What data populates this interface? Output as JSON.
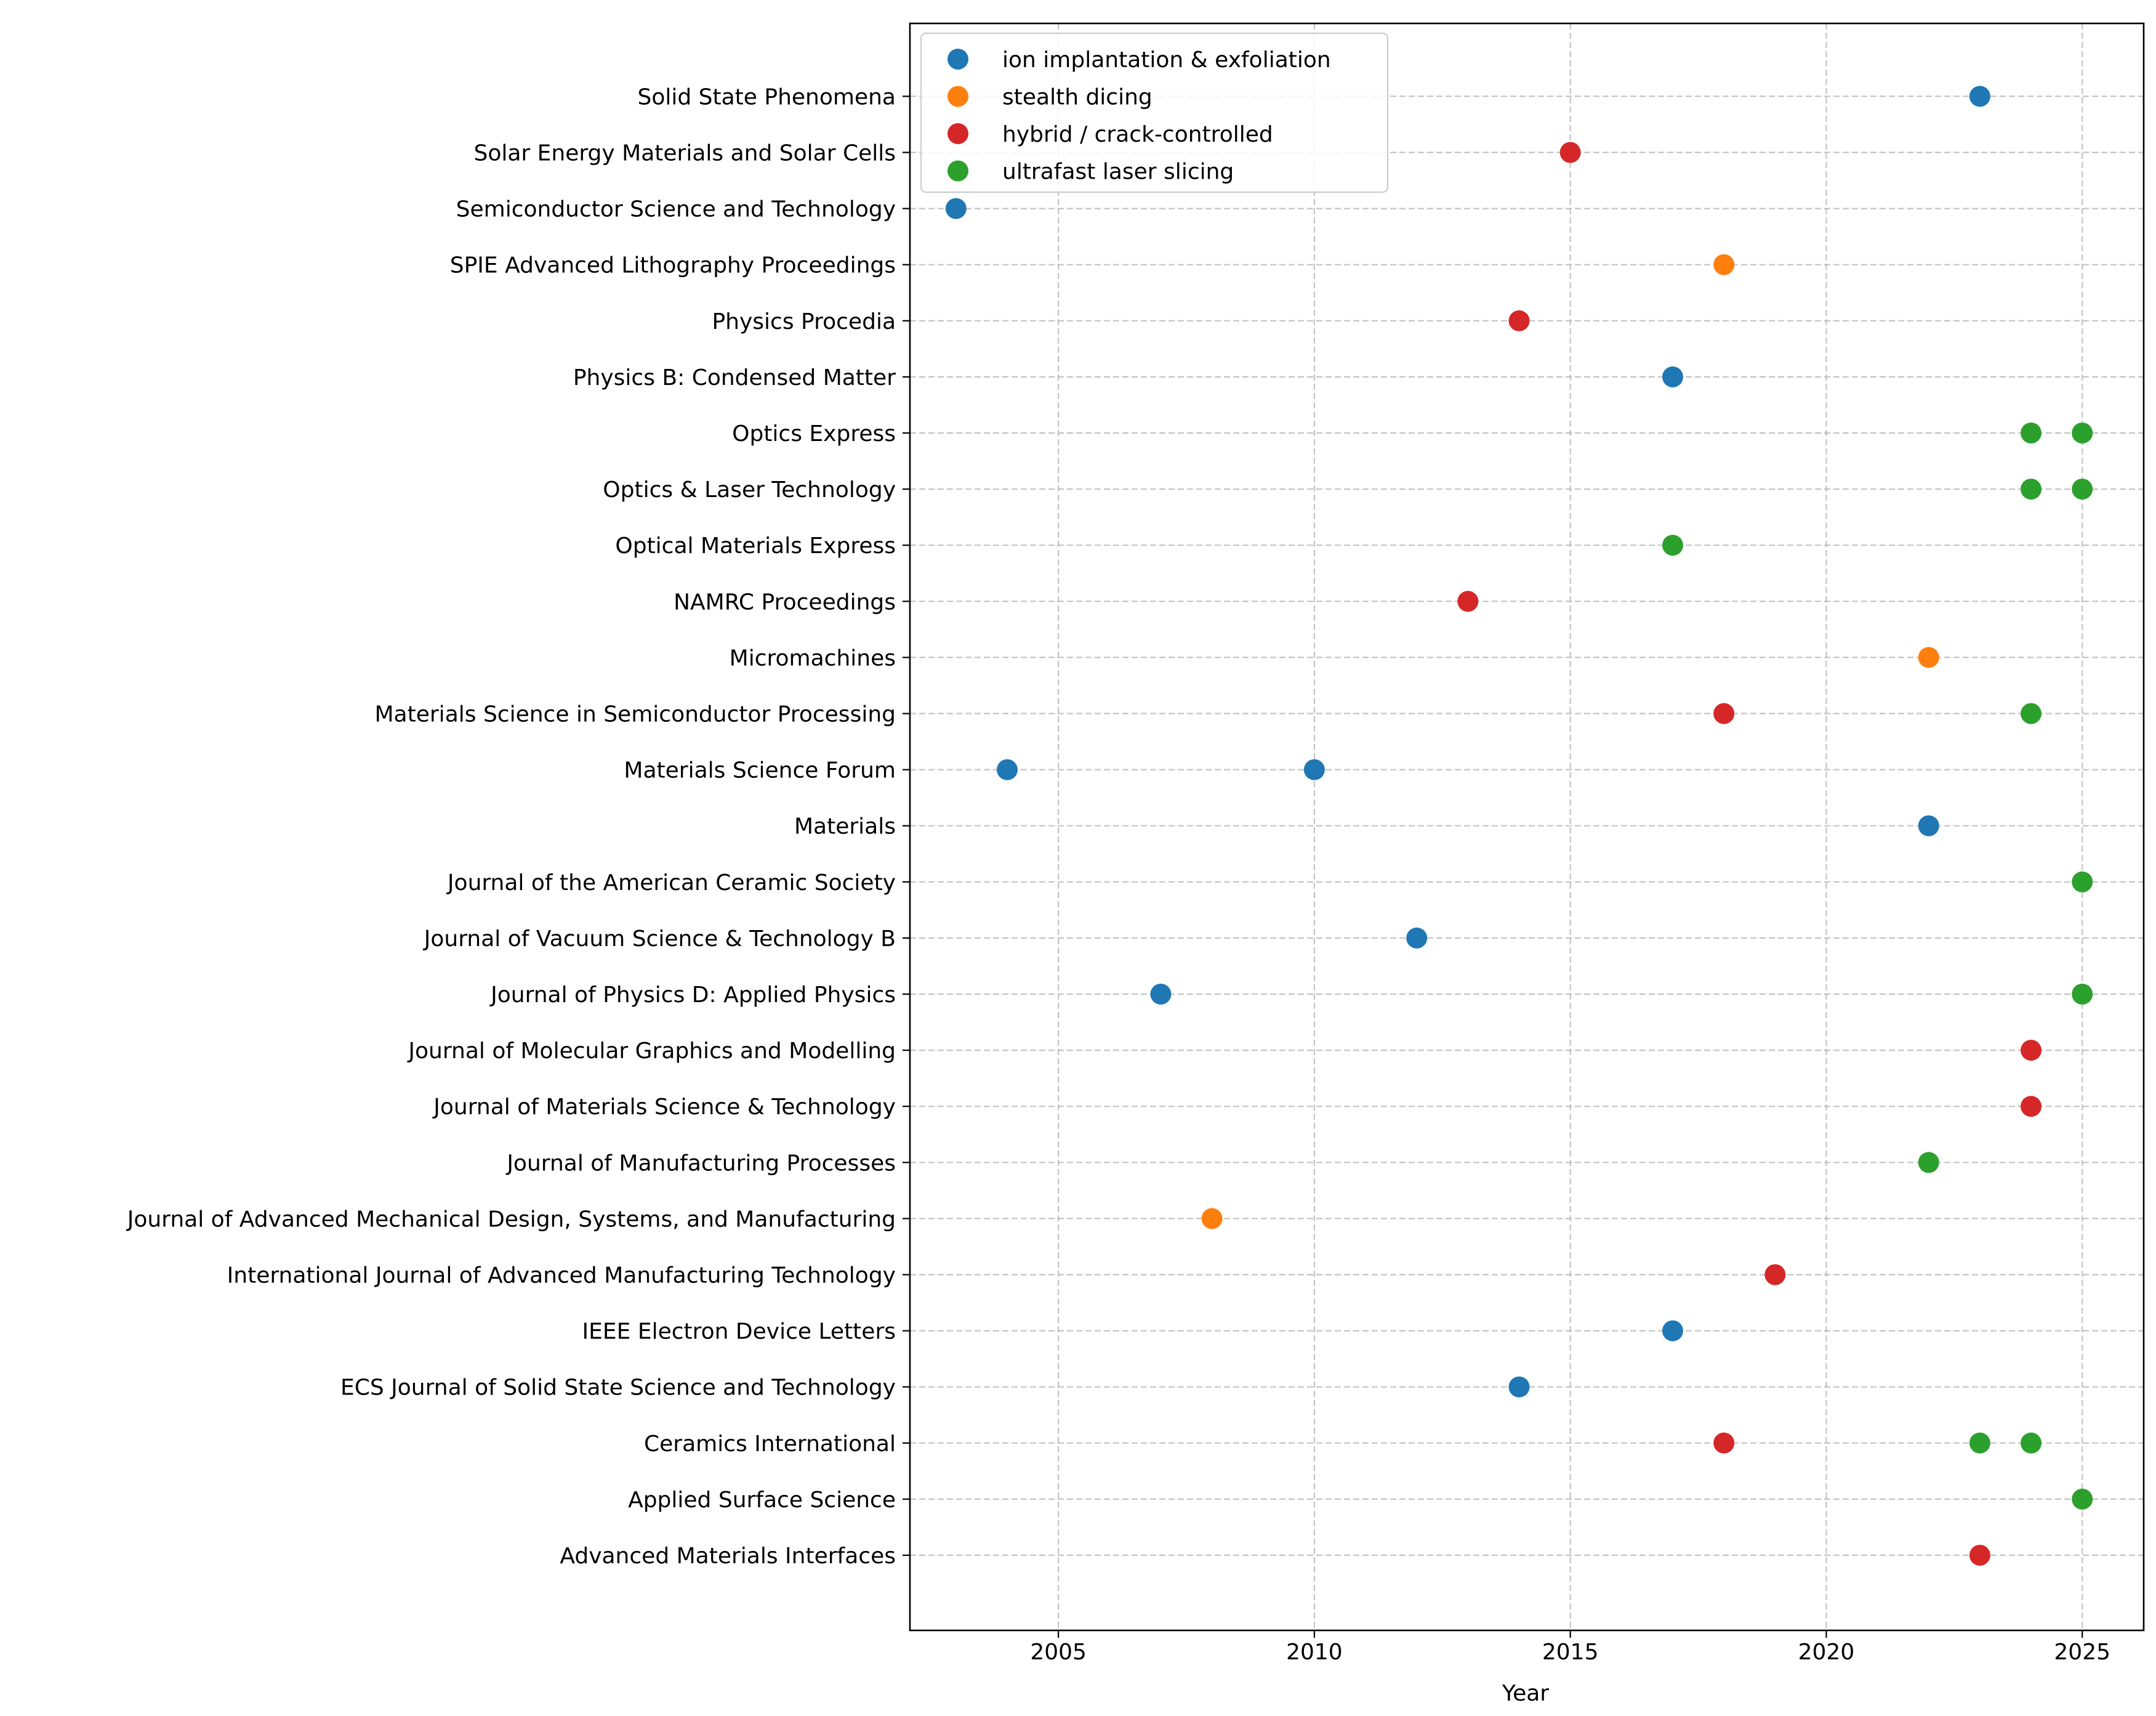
{
  "chart_data": {
    "type": "scatter",
    "title": "",
    "xlabel": "Year",
    "ylabel": "",
    "xlim": [
      2002.1,
      2026.2
    ],
    "xticks": [
      2005,
      2010,
      2015,
      2020,
      2025
    ],
    "grid": true,
    "legend_position": "top-left",
    "categories": [
      "Advanced Materials Interfaces",
      "Applied Surface Science",
      "Ceramics International",
      "ECS Journal of Solid State Science and Technology",
      "IEEE Electron Device Letters",
      "International Journal of Advanced Manufacturing Technology",
      "Journal of Advanced Mechanical Design, Systems, and Manufacturing",
      "Journal of Manufacturing Processes",
      "Journal of Materials Science & Technology",
      "Journal of Molecular Graphics and Modelling",
      "Journal of Physics D: Applied Physics",
      "Journal of Vacuum Science & Technology B",
      "Journal of the American Ceramic Society",
      "Materials",
      "Materials Science Forum",
      "Materials Science in Semiconductor Processing",
      "Micromachines",
      "NAMRC Proceedings",
      "Optical Materials Express",
      "Optics & Laser Technology",
      "Optics Express",
      "Physics B: Condensed Matter",
      "Physics Procedia",
      "SPIE Advanced Lithography Proceedings",
      "Semiconductor Science and Technology",
      "Solar Energy Materials and Solar Cells",
      "Solid State Phenomena"
    ],
    "series": [
      {
        "name": "ion implantation & exfoliation",
        "color": "#1f77b4",
        "points": [
          {
            "x": 2023,
            "y": "Solid State Phenomena"
          },
          {
            "x": 2003,
            "y": "Semiconductor Science and Technology"
          },
          {
            "x": 2017,
            "y": "Physics B: Condensed Matter"
          },
          {
            "x": 2004,
            "y": "Materials Science Forum"
          },
          {
            "x": 2010,
            "y": "Materials Science Forum"
          },
          {
            "x": 2022,
            "y": "Materials"
          },
          {
            "x": 2012,
            "y": "Journal of Vacuum Science & Technology B"
          },
          {
            "x": 2007,
            "y": "Journal of Physics D: Applied Physics"
          },
          {
            "x": 2017,
            "y": "IEEE Electron Device Letters"
          },
          {
            "x": 2014,
            "y": "ECS Journal of Solid State Science and Technology"
          }
        ]
      },
      {
        "name": "stealth dicing",
        "color": "#ff7f0e",
        "points": [
          {
            "x": 2018,
            "y": "SPIE Advanced Lithography Proceedings"
          },
          {
            "x": 2022,
            "y": "Micromachines"
          },
          {
            "x": 2008,
            "y": "Journal of Advanced Mechanical Design, Systems, and Manufacturing"
          }
        ]
      },
      {
        "name": "hybrid / crack-controlled",
        "color": "#d62728",
        "points": [
          {
            "x": 2015,
            "y": "Solar Energy Materials and Solar Cells"
          },
          {
            "x": 2014,
            "y": "Physics Procedia"
          },
          {
            "x": 2013,
            "y": "NAMRC Proceedings"
          },
          {
            "x": 2018,
            "y": "Materials Science in Semiconductor Processing"
          },
          {
            "x": 2024,
            "y": "Journal of Molecular Graphics and Modelling"
          },
          {
            "x": 2024,
            "y": "Journal of Materials Science & Technology"
          },
          {
            "x": 2019,
            "y": "International Journal of Advanced Manufacturing Technology"
          },
          {
            "x": 2018,
            "y": "Ceramics International"
          },
          {
            "x": 2023,
            "y": "Advanced Materials Interfaces"
          }
        ]
      },
      {
        "name": "ultrafast laser slicing",
        "color": "#2ca02c",
        "points": [
          {
            "x": 2024,
            "y": "Optics Express"
          },
          {
            "x": 2025,
            "y": "Optics Express"
          },
          {
            "x": 2024,
            "y": "Optics & Laser Technology"
          },
          {
            "x": 2025,
            "y": "Optics & Laser Technology"
          },
          {
            "x": 2017,
            "y": "Optical Materials Express"
          },
          {
            "x": 2024,
            "y": "Materials Science in Semiconductor Processing"
          },
          {
            "x": 2025,
            "y": "Journal of the American Ceramic Society"
          },
          {
            "x": 2025,
            "y": "Journal of Physics D: Applied Physics"
          },
          {
            "x": 2022,
            "y": "Journal of Manufacturing Processes"
          },
          {
            "x": 2023,
            "y": "Ceramics International"
          },
          {
            "x": 2024,
            "y": "Ceramics International"
          },
          {
            "x": 2025,
            "y": "Applied Surface Science"
          }
        ]
      }
    ]
  }
}
